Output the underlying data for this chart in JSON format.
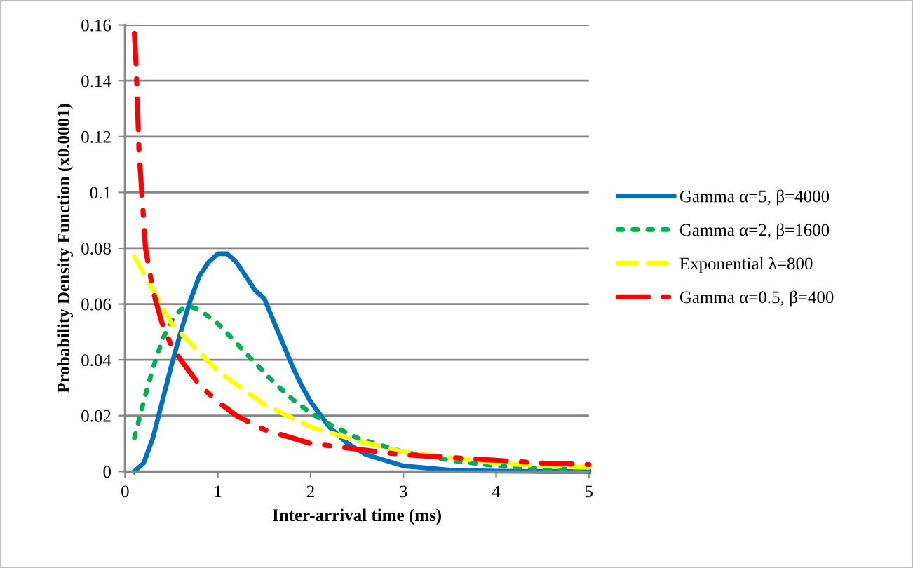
{
  "chart_data": {
    "type": "line",
    "xlabel": "Inter-arrival time (ms)",
    "ylabel": "Probability Density Function (x0.0001)",
    "xlim": [
      0,
      5
    ],
    "xticks": [
      0,
      1,
      2,
      3,
      4,
      5
    ],
    "ylim": [
      0,
      0.16
    ],
    "yticks": [
      0,
      0.02,
      0.04,
      0.06,
      0.08,
      0.1,
      0.12,
      0.14,
      0.16
    ],
    "grid": "y",
    "legend": "right",
    "marker": "none",
    "series": [
      {
        "name": "Gamma α=5, β=4000",
        "color": "#0070c0",
        "line_style": "solid",
        "x": [
          0.1,
          0.2,
          0.3,
          0.4,
          0.5,
          0.6,
          0.7,
          0.8,
          0.9,
          1.0,
          1.1,
          1.2,
          1.3,
          1.4,
          1.5,
          1.6,
          1.7,
          1.8,
          1.9,
          2.0,
          2.2,
          2.4,
          2.6,
          2.8,
          3.0,
          3.5,
          4.0,
          4.5,
          5.0
        ],
        "values": [
          0,
          0.003,
          0.012,
          0.025,
          0.038,
          0.05,
          0.061,
          0.07,
          0.075,
          0.078,
          0.078,
          0.075,
          0.07,
          0.065,
          0.062,
          0.054,
          0.046,
          0.038,
          0.031,
          0.025,
          0.016,
          0.01,
          0.006,
          0.004,
          0.002,
          0.0005,
          0.0001,
          0,
          0
        ]
      },
      {
        "name": "Gamma α=2, β=1600",
        "color": "#00b050",
        "line_style": "dotted",
        "x": [
          0.1,
          0.2,
          0.3,
          0.4,
          0.5,
          0.6,
          0.7,
          0.8,
          1.0,
          1.2,
          1.4,
          1.6,
          1.8,
          2.0,
          2.2,
          2.5,
          3.0,
          3.5,
          4.0,
          4.5,
          5.0
        ],
        "values": [
          0.012,
          0.025,
          0.037,
          0.047,
          0.054,
          0.058,
          0.059,
          0.058,
          0.053,
          0.046,
          0.039,
          0.032,
          0.026,
          0.021,
          0.017,
          0.012,
          0.007,
          0.004,
          0.002,
          0.001,
          0.0007
        ]
      },
      {
        "name": "Exponential λ=800",
        "color": "#ffff00",
        "line_style": "dashed",
        "x": [
          0.1,
          0.5,
          1.0,
          1.5,
          2.0,
          2.5,
          3.0,
          3.5,
          4.0,
          4.5,
          5.0
        ],
        "values": [
          0.077,
          0.053,
          0.036,
          0.024,
          0.016,
          0.011,
          0.007,
          0.005,
          0.003,
          0.002,
          0.0015
        ]
      },
      {
        "name": "Gamma α=0.5, β=400",
        "color": "#ff0000",
        "line_style": "dashdot",
        "x": [
          0.1,
          0.12,
          0.15,
          0.2,
          0.22,
          0.3,
          0.34,
          0.4,
          0.5,
          0.6,
          0.8,
          1.0,
          1.2,
          1.5,
          2.0,
          2.5,
          3.0,
          3.5,
          4.0,
          4.5,
          5.0
        ],
        "values": [
          0.157,
          0.145,
          0.115,
          0.09,
          0.08,
          0.065,
          0.06,
          0.053,
          0.045,
          0.04,
          0.031,
          0.025,
          0.02,
          0.015,
          0.01,
          0.008,
          0.006,
          0.005,
          0.004,
          0.003,
          0.0025
        ]
      }
    ]
  }
}
